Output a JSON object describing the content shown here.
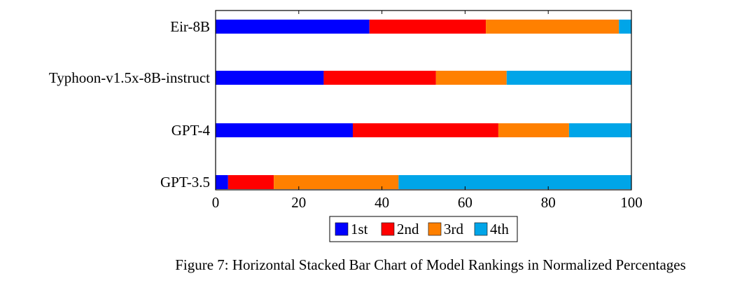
{
  "chart_data": {
    "type": "bar",
    "orientation": "horizontal",
    "stacked": true,
    "categories": [
      "Eir-8B",
      "Typhoon-v1.5x-8B-instruct",
      "GPT-4",
      "GPT-3.5"
    ],
    "series": [
      {
        "name": "1st",
        "color": "#0000FF",
        "values": [
          37,
          26,
          33,
          3
        ]
      },
      {
        "name": "2nd",
        "color": "#FF0000",
        "values": [
          28,
          27,
          35,
          11
        ]
      },
      {
        "name": "3rd",
        "color": "#FF8000",
        "values": [
          32,
          17,
          17,
          30
        ]
      },
      {
        "name": "4th",
        "color": "#00A5E8",
        "values": [
          3,
          30,
          15,
          56
        ]
      }
    ],
    "xlim": [
      0,
      100
    ],
    "xticks": [
      "0",
      "20",
      "40",
      "60",
      "80",
      "100"
    ],
    "legend_position": "bottom-center",
    "grid": false
  },
  "caption": "Figure 7: Horizontal Stacked Bar Chart of Model Rankings in Normalized Percentages"
}
